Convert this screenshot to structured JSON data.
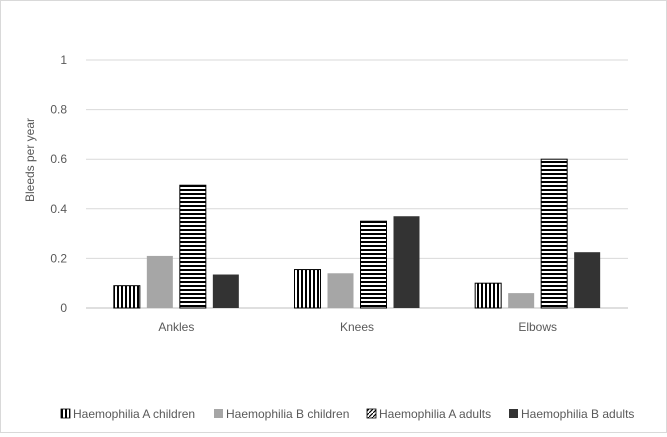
{
  "chart_data": {
    "type": "bar",
    "title": "",
    "xlabel": "",
    "ylabel": "Bleeds per year",
    "ylim": [
      0,
      1
    ],
    "yticks": [
      "0",
      "0.2",
      "0.4",
      "0.6",
      "0.8",
      "1"
    ],
    "grid": true,
    "legend_position": "bottom",
    "categories": [
      "Ankles",
      "Knees",
      "Elbows"
    ],
    "series": [
      {
        "name": "Haemophilia A children",
        "values": [
          0.09,
          0.155,
          0.1
        ],
        "pattern": "vertical-stripes",
        "color": "#000000"
      },
      {
        "name": "Haemophilia B children",
        "values": [
          0.21,
          0.14,
          0.06
        ],
        "pattern": "solid",
        "color": "#a6a6a6"
      },
      {
        "name": "Haemophilia A adults",
        "values": [
          0.495,
          0.35,
          0.6
        ],
        "pattern": "horizontal-stripes",
        "color": "#000000"
      },
      {
        "name": "Haemophilia B adults",
        "values": [
          0.135,
          0.37,
          0.225
        ],
        "pattern": "solid",
        "color": "#333333"
      }
    ]
  }
}
